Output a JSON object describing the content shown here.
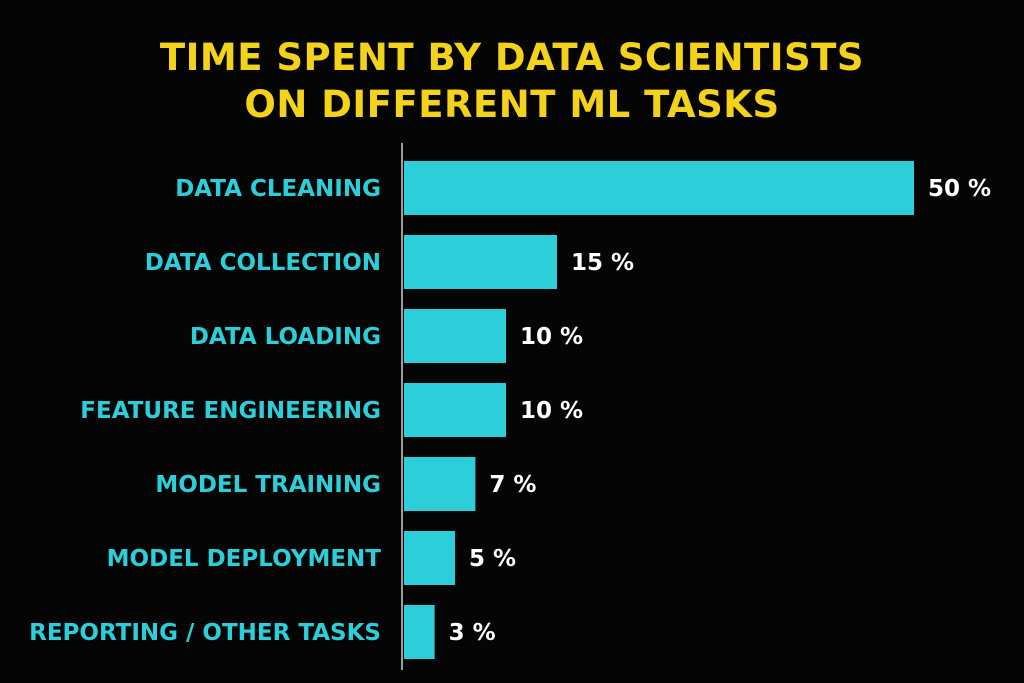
{
  "title_lines": [
    "TIME SPENT BY DATA SCIENTISTS",
    "ON DIFFERENT ML TASKS"
  ],
  "colors": {
    "background": "#050505",
    "title": "#f2d21a",
    "bar": "#2ccfd9",
    "category_label": "#2ccfd9",
    "value_label": "#ffffff",
    "axis": "#9a9a9a"
  },
  "chart_data": {
    "type": "bar",
    "orientation": "horizontal",
    "title": "TIME SPENT BY DATA SCIENTISTS ON DIFFERENT ML TASKS",
    "categories": [
      "DATA CLEANING",
      "DATA COLLECTION",
      "DATA LOADING",
      "FEATURE ENGINEERING",
      "MODEL TRAINING",
      "MODEL DEPLOYMENT",
      "REPORTING / OTHER TASKS"
    ],
    "values": [
      50,
      15,
      10,
      10,
      7,
      5,
      3
    ],
    "value_labels": [
      "50 %",
      "15 %",
      "10 %",
      "10 %",
      "7 %",
      "5 %",
      "3 %"
    ],
    "xlabel": "",
    "ylabel": "",
    "grid": false,
    "legend": "none"
  }
}
